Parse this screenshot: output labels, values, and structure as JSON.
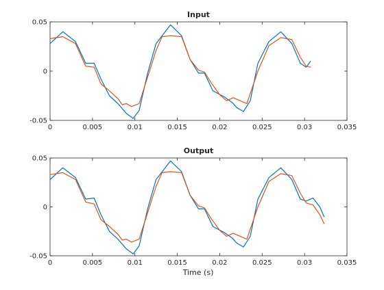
{
  "figure": {
    "xlabel": "Time (s)"
  },
  "chart_data": [
    {
      "type": "line",
      "title": "Input",
      "xlabel": "",
      "ylabel": "",
      "xlim": [
        0,
        0.035
      ],
      "ylim": [
        -0.05,
        0.05
      ],
      "xticks": [
        0,
        0.005,
        0.01,
        0.015,
        0.02,
        0.025,
        0.03,
        0.035
      ],
      "xtick_labels": [
        "0",
        "0.005",
        "0.01",
        "0.015",
        "0.02",
        "0.025",
        "0.03",
        "0.035"
      ],
      "yticks": [
        -0.05,
        0,
        0.05
      ],
      "ytick_labels": [
        "-0.05",
        "0",
        "0.05"
      ],
      "grid": false,
      "series": [
        {
          "color": "#0072BD",
          "x": [
            0,
            0.0015,
            0.003,
            0.0042,
            0.0052,
            0.006,
            0.007,
            0.008,
            0.009,
            0.0098,
            0.0105,
            0.0115,
            0.0125,
            0.0142,
            0.0155,
            0.0165,
            0.0175,
            0.0182,
            0.0192,
            0.0205,
            0.0215,
            0.022,
            0.0228,
            0.0236,
            0.0245,
            0.0258,
            0.0272,
            0.0285,
            0.0295,
            0.0302,
            0.0307
          ],
          "y": [
            0.028,
            0.04,
            0.03,
            0.008,
            0.008,
            -0.008,
            -0.025,
            -0.033,
            -0.043,
            -0.048,
            -0.04,
            -0.002,
            0.028,
            0.047,
            0.036,
            0.012,
            -0.002,
            -0.002,
            -0.02,
            -0.026,
            -0.032,
            -0.037,
            -0.041,
            -0.03,
            0.008,
            0.03,
            0.04,
            0.028,
            0.008,
            0.004,
            0.01
          ]
        },
        {
          "color": "#D95319",
          "x": [
            0,
            0.0015,
            0.003,
            0.0042,
            0.0052,
            0.006,
            0.007,
            0.008,
            0.0085,
            0.009,
            0.0096,
            0.0105,
            0.0115,
            0.0125,
            0.0132,
            0.0142,
            0.0155,
            0.0165,
            0.0175,
            0.0182,
            0.019,
            0.02,
            0.0208,
            0.0216,
            0.0224,
            0.0232,
            0.0245,
            0.0258,
            0.0272,
            0.0285,
            0.0295,
            0.0302,
            0.0307
          ],
          "y": [
            0.033,
            0.035,
            0.028,
            0.005,
            0.004,
            -0.013,
            -0.02,
            -0.028,
            -0.034,
            -0.033,
            -0.036,
            -0.033,
            -0.006,
            0.021,
            0.035,
            0.036,
            0.035,
            0.012,
            0.001,
            -0.001,
            -0.012,
            -0.024,
            -0.03,
            -0.027,
            -0.03,
            -0.033,
            0.0,
            0.026,
            0.034,
            0.032,
            0.014,
            0.005,
            0.004
          ]
        }
      ]
    },
    {
      "type": "line",
      "title": "Output",
      "xlabel": "Time (s)",
      "ylabel": "",
      "xlim": [
        0,
        0.035
      ],
      "ylim": [
        -0.05,
        0.05
      ],
      "xticks": [
        0,
        0.005,
        0.01,
        0.015,
        0.02,
        0.025,
        0.03,
        0.035
      ],
      "xtick_labels": [
        "0",
        "0.005",
        "0.01",
        "0.015",
        "0.02",
        "0.025",
        "0.03",
        "0.035"
      ],
      "yticks": [
        -0.05,
        0,
        0.05
      ],
      "ytick_labels": [
        "-0.05",
        "0",
        "0.05"
      ],
      "grid": false,
      "series": [
        {
          "color": "#0072BD",
          "x": [
            0,
            0.0015,
            0.003,
            0.0042,
            0.0052,
            0.006,
            0.007,
            0.008,
            0.009,
            0.0098,
            0.0105,
            0.0115,
            0.0125,
            0.0142,
            0.0155,
            0.0165,
            0.0175,
            0.0182,
            0.0192,
            0.0205,
            0.0215,
            0.022,
            0.0228,
            0.0236,
            0.0245,
            0.0258,
            0.0272,
            0.0285,
            0.0295,
            0.0302,
            0.031,
            0.0318,
            0.0323
          ],
          "y": [
            0.028,
            0.04,
            0.03,
            0.008,
            0.009,
            -0.008,
            -0.025,
            -0.033,
            -0.043,
            -0.048,
            -0.04,
            -0.002,
            0.028,
            0.047,
            0.036,
            0.012,
            -0.002,
            -0.002,
            -0.02,
            -0.026,
            -0.032,
            -0.037,
            -0.041,
            -0.03,
            0.008,
            0.03,
            0.04,
            0.028,
            0.008,
            0.006,
            0.009,
            0.0,
            -0.01
          ]
        },
        {
          "color": "#D95319",
          "x": [
            0,
            0.0015,
            0.003,
            0.0042,
            0.0052,
            0.006,
            0.007,
            0.008,
            0.0085,
            0.009,
            0.0096,
            0.0105,
            0.0115,
            0.0125,
            0.0132,
            0.0142,
            0.0155,
            0.0165,
            0.0175,
            0.0182,
            0.019,
            0.02,
            0.0208,
            0.0216,
            0.0224,
            0.0232,
            0.0245,
            0.0258,
            0.0272,
            0.0285,
            0.0295,
            0.0302,
            0.031,
            0.0318,
            0.0323
          ],
          "y": [
            0.033,
            0.035,
            0.028,
            0.005,
            0.003,
            -0.013,
            -0.02,
            -0.028,
            -0.034,
            -0.033,
            -0.036,
            -0.033,
            -0.006,
            0.021,
            0.035,
            0.036,
            0.035,
            0.012,
            0.001,
            -0.001,
            -0.012,
            -0.024,
            -0.03,
            -0.027,
            -0.03,
            -0.033,
            0.0,
            0.026,
            0.034,
            0.032,
            0.014,
            0.004,
            0.002,
            -0.008,
            -0.017
          ]
        }
      ]
    }
  ]
}
